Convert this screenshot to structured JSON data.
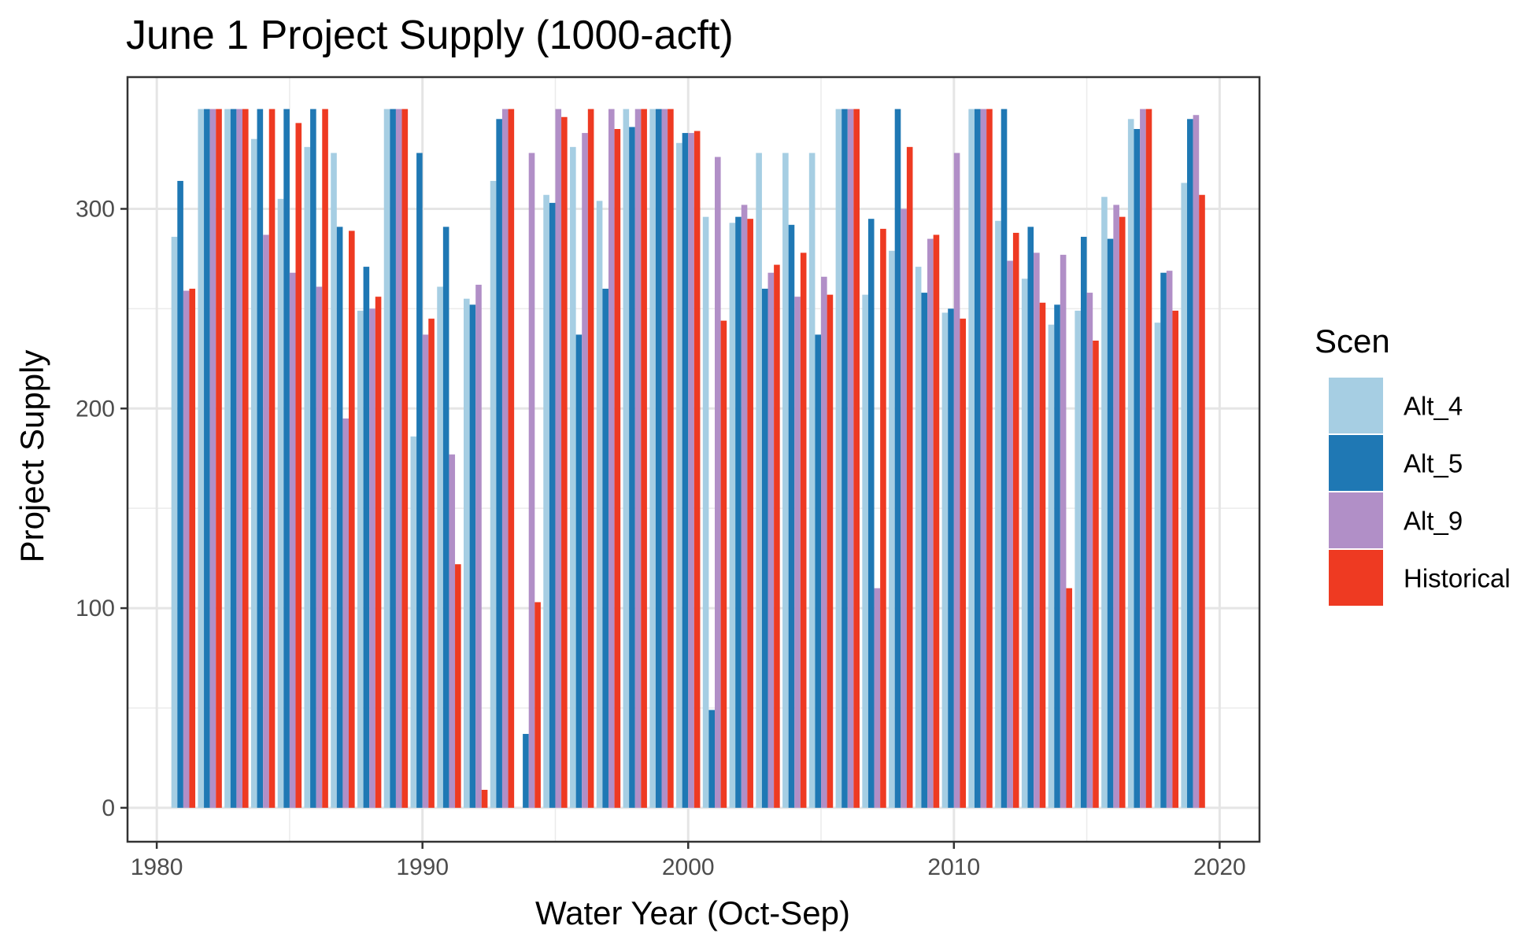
{
  "chart_data": {
    "type": "bar",
    "title": "June 1 Project Supply (1000-acft)",
    "xlabel": "Water Year (Oct-Sep)",
    "ylabel": "Project Supply",
    "x_ticks": [
      "1980",
      "1990",
      "2000",
      "2010",
      "2020"
    ],
    "y_ticks": [
      "0",
      "100",
      "200",
      "300"
    ],
    "xlim": [
      1978.9,
      2021.5
    ],
    "ylim": [
      -17,
      366
    ],
    "grid": true,
    "legend": {
      "title": "Scen",
      "position": "right"
    },
    "categories": [
      1981,
      1982,
      1983,
      1984,
      1985,
      1986,
      1987,
      1988,
      1989,
      1990,
      1991,
      1992,
      1993,
      1994,
      1995,
      1996,
      1997,
      1998,
      1999,
      2000,
      2001,
      2002,
      2003,
      2004,
      2005,
      2006,
      2007,
      2008,
      2009,
      2010,
      2011,
      2012,
      2013,
      2014,
      2015,
      2016,
      2017,
      2018,
      2019
    ],
    "series": [
      {
        "name": "Alt_4",
        "color": "#a6cee3",
        "values": [
          286,
          350,
          350,
          335,
          305,
          331,
          328,
          249,
          350,
          186,
          261,
          255,
          314,
          0,
          307,
          331,
          304,
          350,
          350,
          333,
          296,
          293,
          328,
          328,
          328,
          350,
          257,
          279,
          271,
          248,
          350,
          294,
          265,
          242,
          249,
          306,
          345,
          243,
          313
        ]
      },
      {
        "name": "Alt_5",
        "color": "#1f78b4",
        "values": [
          314,
          350,
          350,
          350,
          350,
          350,
          291,
          271,
          350,
          328,
          291,
          252,
          345,
          37,
          303,
          237,
          260,
          341,
          350,
          338,
          49,
          296,
          260,
          292,
          237,
          350,
          295,
          350,
          258,
          250,
          350,
          350,
          291,
          252,
          286,
          285,
          340,
          268,
          345
        ]
      },
      {
        "name": "Alt_9",
        "color": "#b18fc7",
        "values": [
          259,
          350,
          350,
          287,
          268,
          261,
          195,
          250,
          350,
          237,
          177,
          262,
          350,
          328,
          350,
          338,
          350,
          350,
          350,
          338,
          326,
          302,
          268,
          256,
          266,
          350,
          110,
          300,
          285,
          328,
          350,
          274,
          278,
          277,
          258,
          302,
          350,
          269,
          347
        ]
      },
      {
        "name": "Historical",
        "color": "#ee3a22",
        "values": [
          260,
          350,
          350,
          350,
          343,
          350,
          289,
          256,
          350,
          245,
          122,
          9,
          350,
          103,
          346,
          350,
          340,
          350,
          350,
          339,
          244,
          295,
          272,
          278,
          257,
          350,
          290,
          331,
          287,
          245,
          350,
          288,
          253,
          110,
          234,
          296,
          350,
          249,
          307
        ]
      }
    ]
  }
}
